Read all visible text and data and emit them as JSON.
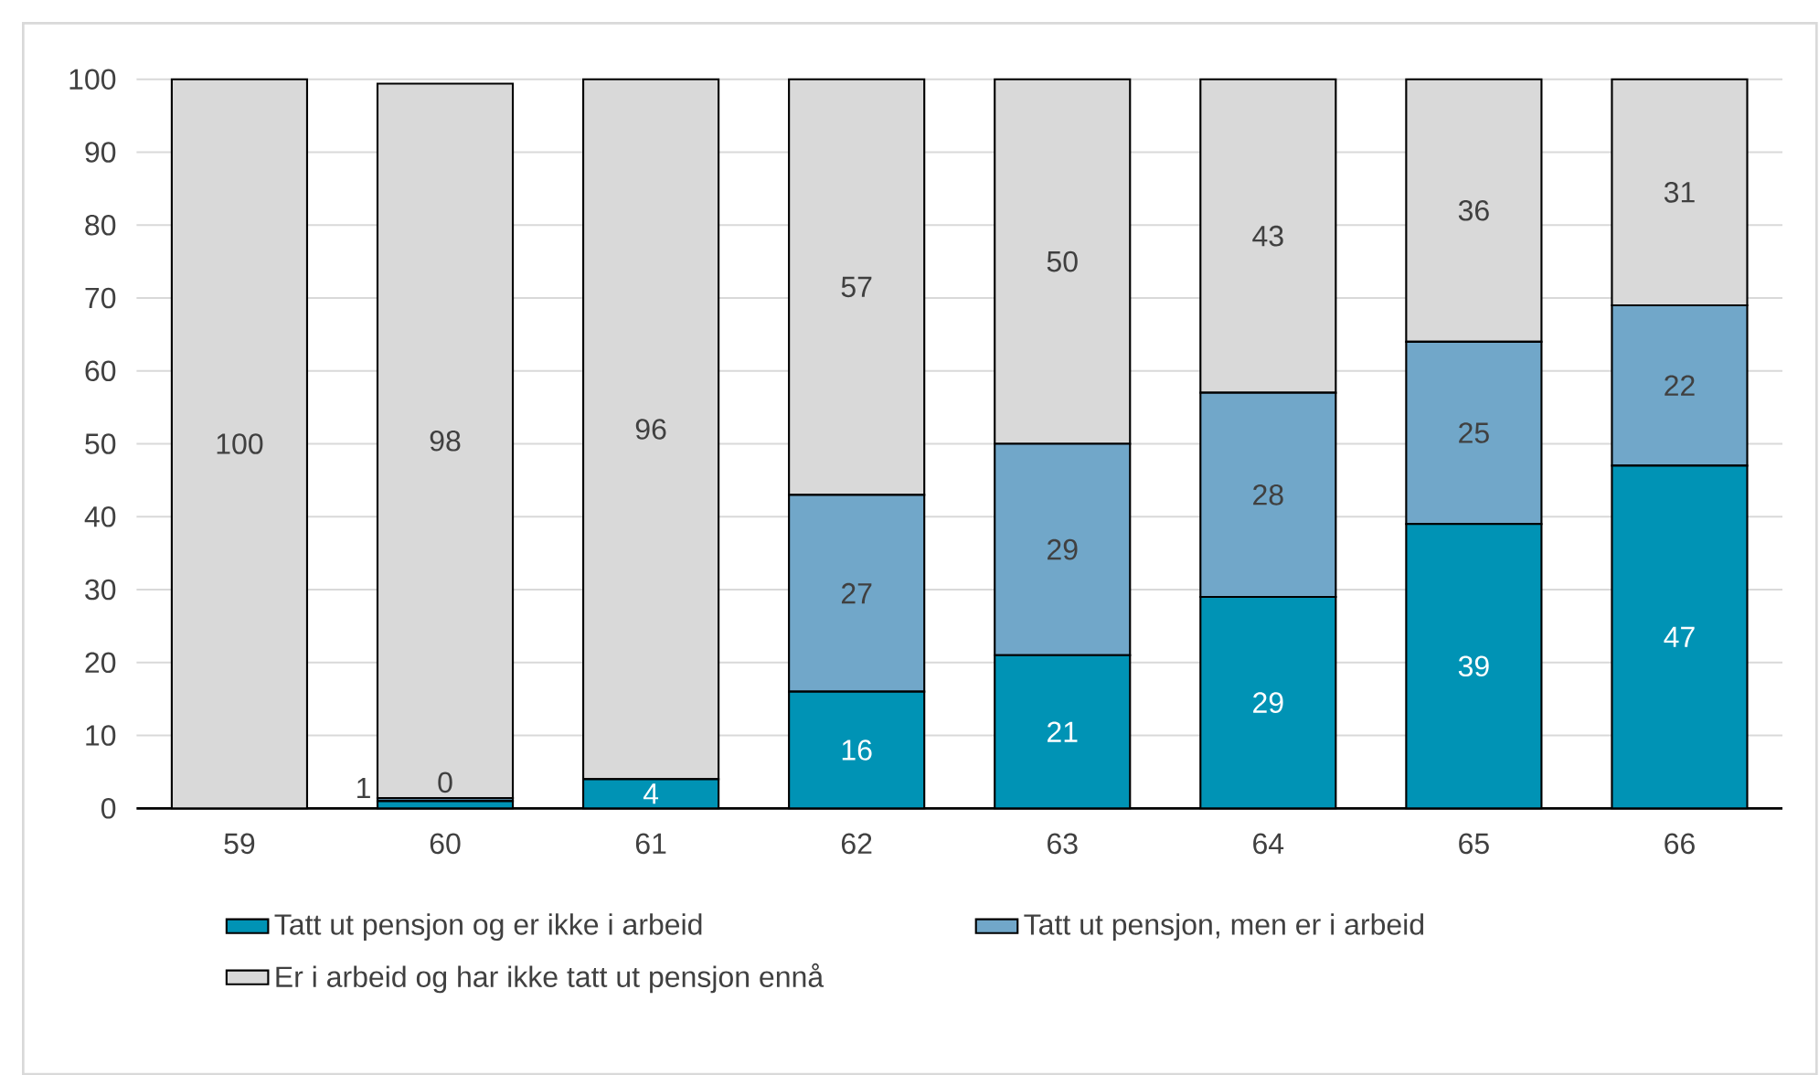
{
  "chart_data": {
    "type": "bar",
    "stacked": true,
    "categories": [
      "59",
      "60",
      "61",
      "62",
      "63",
      "64",
      "65",
      "66"
    ],
    "series": [
      {
        "name": "Tatt ut pensjon og er ikke i arbeid",
        "color": "#0093b5",
        "values": [
          0,
          1,
          4,
          16,
          21,
          29,
          39,
          47
        ],
        "value_labels": [
          null,
          "1",
          "4",
          "16",
          "21",
          "29",
          "39",
          "47"
        ]
      },
      {
        "name": "Tatt ut pensjon, men er i arbeid",
        "color": "#71a7c9",
        "values": [
          0,
          0.4,
          0,
          27,
          29,
          28,
          25,
          22
        ],
        "value_labels": [
          null,
          "0",
          null,
          "27",
          "29",
          "28",
          "25",
          "22"
        ]
      },
      {
        "name": "Er i arbeid og har ikke tatt ut pensjon ennå",
        "color": "#d9d9d9",
        "values": [
          100,
          98,
          96,
          57,
          50,
          43,
          36,
          31
        ],
        "value_labels": [
          "100",
          "98",
          "96",
          "57",
          "50",
          "43",
          "36",
          "31"
        ]
      }
    ],
    "ylim": [
      0,
      100
    ],
    "yticks": [
      0,
      10,
      20,
      30,
      40,
      50,
      60,
      70,
      80,
      90,
      100
    ],
    "grid": "y",
    "legend": "bottom"
  }
}
